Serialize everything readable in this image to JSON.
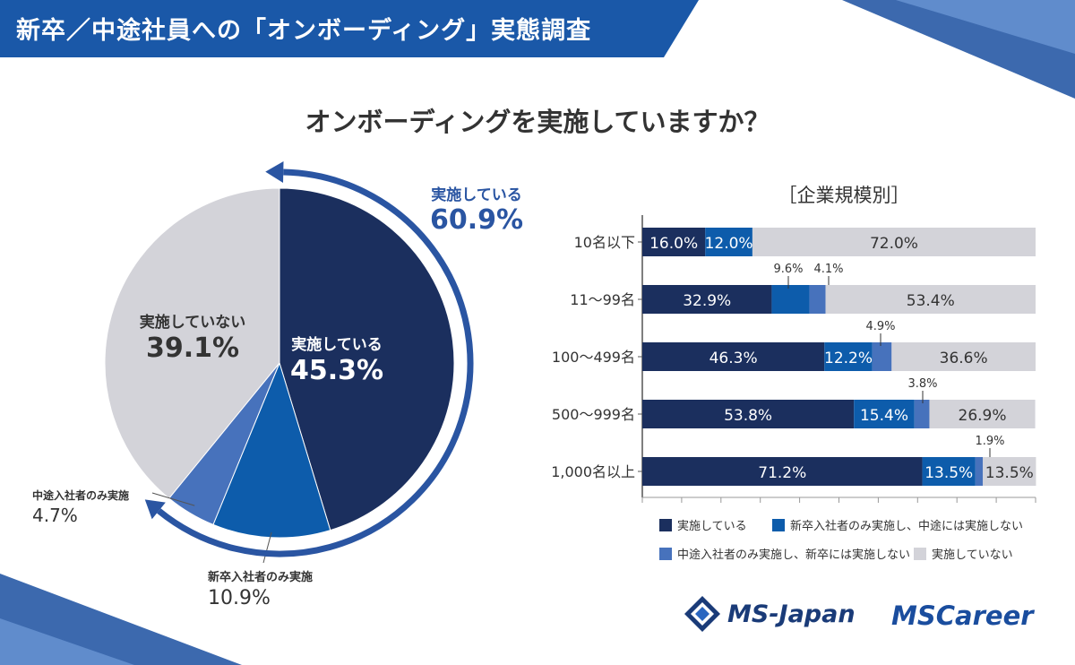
{
  "header": {
    "title": "新卒／中途社員への「オンボーディング」実態調査"
  },
  "question": "オンボーディングを実施していますか？",
  "colors": {
    "implemented": "#1b2f5e",
    "new_only": "#0d5cab",
    "mid_only": "#4772bc",
    "not_implemented": "#d3d3d9",
    "header": "#1a58a8",
    "arrow": "#2a55a2"
  },
  "chart_data": [
    {
      "type": "pie",
      "title": "オンボーディングを実施していますか？",
      "slices": [
        {
          "key": "implemented",
          "label": "実施している",
          "value": 45.3,
          "value_text": "45.3%"
        },
        {
          "key": "new_only",
          "label": "新卒入社者のみ実施",
          "value": 10.9,
          "value_text": "10.9%"
        },
        {
          "key": "mid_only",
          "label": "中途入社者のみ実施",
          "value": 4.7,
          "value_text": "4.7%"
        },
        {
          "key": "not_implemented",
          "label": "実施していない",
          "value": 39.1,
          "value_text": "39.1%"
        }
      ],
      "total_implemented": {
        "label": "実施している",
        "value": 60.9,
        "value_text": "60.9%"
      }
    },
    {
      "type": "bar",
      "orientation": "horizontal",
      "stacked": true,
      "title": "［企業規模別］",
      "categories": [
        "10名以下",
        "11〜99名",
        "100〜499名",
        "500〜999名",
        "1,000名以上"
      ],
      "xlim": [
        0,
        100
      ],
      "series": [
        {
          "key": "implemented",
          "name": "実施している",
          "values": [
            16.0,
            32.9,
            46.3,
            53.8,
            71.2
          ]
        },
        {
          "key": "new_only",
          "name": "新卒入社者のみ実施し、中途には実施しない",
          "values": [
            12.0,
            9.6,
            12.2,
            15.4,
            13.5
          ]
        },
        {
          "key": "mid_only",
          "name": "中途入社者のみ実施し、新卒には実施しない",
          "values": [
            0,
            4.1,
            4.9,
            3.8,
            1.9
          ]
        },
        {
          "key": "not_implemented",
          "name": "実施していない",
          "values": [
            72.0,
            53.4,
            36.6,
            26.9,
            13.5
          ]
        }
      ],
      "value_labels": [
        [
          "16.0%",
          "12.0%",
          "",
          "72.0%"
        ],
        [
          "32.9%",
          "9.6%",
          "4.1%",
          "53.4%"
        ],
        [
          "46.3%",
          "12.2%",
          "4.9%",
          "36.6%"
        ],
        [
          "53.8%",
          "15.4%",
          "3.8%",
          "26.9%"
        ],
        [
          "71.2%",
          "13.5%",
          "1.9%",
          "13.5%"
        ]
      ]
    }
  ],
  "logos": {
    "logo1": "MS-Japan",
    "logo2": "MSCareer"
  }
}
